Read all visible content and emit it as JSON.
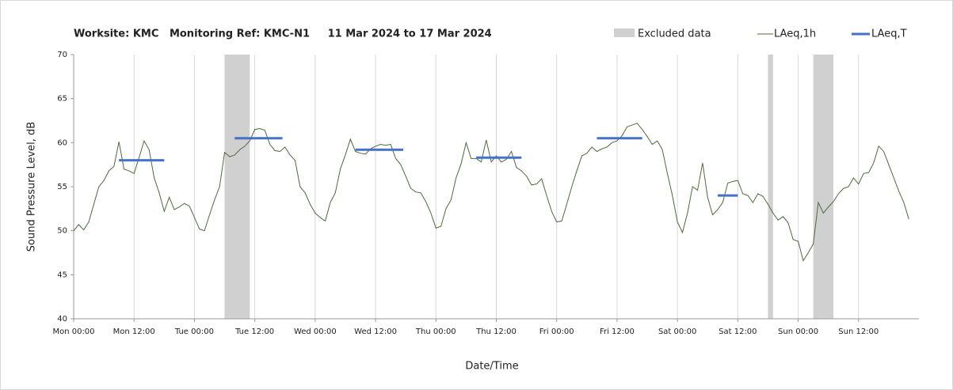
{
  "chart_data": {
    "type": "line",
    "title": "Worksite: KMC   Monitoring Ref: KMC-N1     11 Mar 2024 to 17 Mar 2024",
    "ylabel": "Sound Pressure Level, dB",
    "xlabel": "Date/Time",
    "xlim": [
      0,
      168
    ],
    "ylim": [
      40,
      70
    ],
    "yticks": [
      40,
      45,
      50,
      55,
      60,
      65,
      70
    ],
    "xticks": [
      {
        "value": 0,
        "label": "Mon 00:00"
      },
      {
        "value": 12,
        "label": "Mon 12:00"
      },
      {
        "value": 24,
        "label": "Tue 00:00"
      },
      {
        "value": 36,
        "label": "Tue 12:00"
      },
      {
        "value": 48,
        "label": "Wed 00:00"
      },
      {
        "value": 60,
        "label": "Wed 12:00"
      },
      {
        "value": 72,
        "label": "Thu 00:00"
      },
      {
        "value": 84,
        "label": "Thu 12:00"
      },
      {
        "value": 96,
        "label": "Fri 00:00"
      },
      {
        "value": 108,
        "label": "Fri 12:00"
      },
      {
        "value": 120,
        "label": "Sat 00:00"
      },
      {
        "value": 132,
        "label": "Sat 12:00"
      },
      {
        "value": 144,
        "label": "Sun 00:00"
      },
      {
        "value": 156,
        "label": "Sun 12:00"
      }
    ],
    "grid": "x",
    "excluded": {
      "name": "Excluded data",
      "color": "#d0d0d0",
      "ranges": [
        [
          30,
          35
        ],
        [
          138,
          139
        ],
        [
          147,
          151
        ]
      ]
    },
    "series": [
      {
        "name": "LAeq,1h",
        "color": "#4e6b3a",
        "x": [
          0,
          1,
          2,
          3,
          4,
          5,
          6,
          7,
          8,
          9,
          10,
          11,
          12,
          13,
          14,
          15,
          16,
          17,
          18,
          19,
          20,
          21,
          22,
          23,
          24,
          25,
          26,
          27,
          28,
          29,
          30,
          31,
          32,
          33,
          34,
          35,
          36,
          37,
          38,
          39,
          40,
          41,
          42,
          43,
          44,
          45,
          46,
          47,
          48,
          49,
          50,
          51,
          52,
          53,
          54,
          55,
          56,
          57,
          58,
          59,
          60,
          61,
          62,
          63,
          64,
          65,
          66,
          67,
          68,
          69,
          70,
          71,
          72,
          73,
          74,
          75,
          76,
          77,
          78,
          79,
          80,
          81,
          82,
          83,
          84,
          85,
          86,
          87,
          88,
          89,
          90,
          91,
          92,
          93,
          94,
          95,
          96,
          97,
          98,
          99,
          100,
          101,
          102,
          103,
          104,
          105,
          106,
          107,
          108,
          109,
          110,
          111,
          112,
          113,
          114,
          115,
          116,
          117,
          118,
          119,
          120,
          121,
          122,
          123,
          124,
          125,
          126,
          127,
          128,
          129,
          130,
          131,
          132,
          133,
          134,
          135,
          136,
          137,
          138,
          139,
          140,
          141,
          142,
          143,
          144,
          145,
          146,
          147,
          148,
          149,
          150,
          151,
          152,
          153,
          154,
          155,
          156,
          157,
          158,
          159,
          160,
          161,
          162,
          163,
          164,
          165,
          166
        ],
        "values": [
          50.0,
          50.7,
          50.1,
          51.0,
          53.0,
          55.0,
          55.7,
          56.8,
          57.3,
          60.1,
          57.0,
          56.8,
          56.5,
          58.3,
          60.2,
          59.2,
          56.0,
          54.3,
          52.2,
          53.8,
          52.4,
          52.7,
          53.1,
          52.8,
          51.5,
          50.2,
          50.0,
          51.8,
          53.5,
          55.0,
          58.9,
          58.4,
          58.6,
          59.2,
          59.6,
          60.2,
          61.5,
          61.6,
          61.4,
          59.8,
          59.1,
          59.0,
          59.5,
          58.6,
          58.0,
          55.0,
          54.3,
          53.0,
          52.0,
          51.5,
          51.1,
          53.2,
          54.3,
          57.0,
          58.6,
          60.4,
          59.0,
          58.8,
          58.7,
          59.3,
          59.6,
          59.8,
          59.7,
          59.8,
          58.2,
          57.5,
          56.2,
          54.8,
          54.4,
          54.3,
          53.3,
          52.0,
          50.3,
          50.5,
          52.5,
          53.5,
          56.0,
          57.6,
          60.0,
          58.2,
          58.2,
          57.8,
          60.3,
          57.8,
          58.5,
          57.8,
          58.1,
          59.0,
          57.2,
          56.8,
          56.2,
          55.2,
          55.3,
          55.9,
          54.0,
          52.2,
          51.0,
          51.1,
          53.0,
          55.0,
          56.8,
          58.5,
          58.8,
          59.5,
          59.0,
          59.3,
          59.5,
          60.0,
          60.2,
          60.8,
          61.8,
          62.0,
          62.2,
          61.5,
          60.7,
          59.8,
          60.2,
          59.2,
          56.5,
          54.0,
          51.0,
          49.8,
          52.0,
          55.0,
          54.6,
          57.7,
          53.8,
          51.8,
          52.4,
          53.2,
          55.4,
          55.6,
          55.7,
          54.2,
          54.0,
          53.2,
          54.2,
          53.9,
          53.0,
          52.0,
          51.2,
          51.6,
          50.9,
          49.0,
          48.8,
          46.6,
          47.5,
          48.5,
          53.2,
          52.0,
          52.7,
          53.3,
          54.2,
          54.8,
          55.0,
          56.0,
          55.3,
          56.5,
          56.6,
          57.7,
          59.6,
          59.0,
          57.5,
          56.0,
          54.5,
          53.2,
          51.3
        ]
      },
      {
        "name": "LAeq,T",
        "color": "#4472c4",
        "segments": [
          {
            "start": 9,
            "end": 18,
            "value": 58.0
          },
          {
            "start": 32,
            "end": 41.5,
            "value": 60.5
          },
          {
            "start": 56,
            "end": 65.5,
            "value": 59.2
          },
          {
            "start": 80,
            "end": 89,
            "value": 58.3
          },
          {
            "start": 104,
            "end": 113,
            "value": 60.5
          },
          {
            "start": 128,
            "end": 132,
            "value": 54.0
          }
        ]
      }
    ]
  }
}
